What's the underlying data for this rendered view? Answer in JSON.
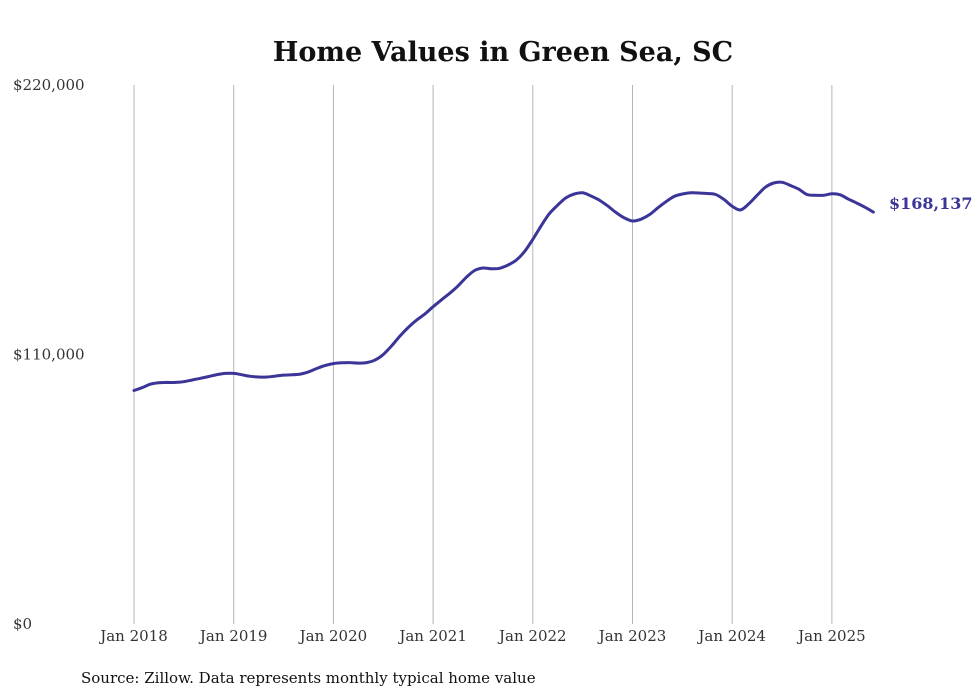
{
  "chart_data": {
    "type": "line",
    "title": "Home Values in Green Sea, SC",
    "xlabel": "",
    "ylabel": "",
    "ylim": [
      0,
      220000
    ],
    "y_ticks": [
      "$0",
      "$110,000",
      "$220,000"
    ],
    "y_tick_values": [
      0,
      110000,
      220000
    ],
    "x_ticks": [
      "Jan 2018",
      "Jan 2019",
      "Jan 2020",
      "Jan 2021",
      "Jan 2022",
      "Jan 2023",
      "Jan 2024",
      "Jan 2025"
    ],
    "x_tick_values": [
      "2018-01",
      "2019-01",
      "2020-01",
      "2021-01",
      "2022-01",
      "2023-01",
      "2024-01",
      "2025-01"
    ],
    "x_range": [
      "2018-01",
      "2025-06"
    ],
    "grid": "vertical",
    "line_color": "#3a3597",
    "end_label": "$168,137",
    "source": "Source: Zillow. Data represents monthly typical home value",
    "series": [
      {
        "x": [
          "2018-01",
          "2018-02",
          "2018-03",
          "2018-04",
          "2018-05",
          "2018-06",
          "2018-07",
          "2018-08",
          "2018-09",
          "2018-10",
          "2018-11",
          "2018-12",
          "2019-01",
          "2019-02",
          "2019-03",
          "2019-04",
          "2019-05",
          "2019-06",
          "2019-07",
          "2019-08",
          "2019-09",
          "2019-10",
          "2019-11",
          "2019-12",
          "2020-01",
          "2020-02",
          "2020-03",
          "2020-04",
          "2020-05",
          "2020-06",
          "2020-07",
          "2020-08",
          "2020-09",
          "2020-10",
          "2020-11",
          "2020-12",
          "2021-01",
          "2021-02",
          "2021-03",
          "2021-04",
          "2021-05",
          "2021-06",
          "2021-07",
          "2021-08",
          "2021-09",
          "2021-10",
          "2021-11",
          "2021-12",
          "2022-01",
          "2022-02",
          "2022-03",
          "2022-04",
          "2022-05",
          "2022-06",
          "2022-07",
          "2022-08",
          "2022-09",
          "2022-10",
          "2022-11",
          "2022-12",
          "2023-01",
          "2023-02",
          "2023-03",
          "2023-04",
          "2023-05",
          "2023-06",
          "2023-07",
          "2023-08",
          "2023-09",
          "2023-10",
          "2023-11",
          "2023-12",
          "2024-01",
          "2024-02",
          "2024-03",
          "2024-04",
          "2024-05",
          "2024-06",
          "2024-07",
          "2024-08",
          "2024-09",
          "2024-10",
          "2024-11",
          "2024-12",
          "2025-01",
          "2025-02",
          "2025-03",
          "2025-04",
          "2025-05",
          "2025-06"
        ],
        "values": [
          95300,
          96500,
          97900,
          98500,
          98600,
          98600,
          98900,
          99600,
          100300,
          101000,
          101800,
          102300,
          102300,
          101700,
          101100,
          100800,
          100800,
          101200,
          101600,
          101700,
          102000,
          102900,
          104300,
          105500,
          106300,
          106600,
          106700,
          106500,
          106700,
          107700,
          110000,
          113500,
          117500,
          121000,
          124000,
          126500,
          129500,
          132300,
          135000,
          138000,
          141500,
          144300,
          145300,
          145000,
          145200,
          146500,
          148500,
          152000,
          157000,
          162500,
          167500,
          171000,
          174000,
          175500,
          176000,
          174700,
          173000,
          170700,
          168000,
          165800,
          164500,
          165200,
          167000,
          169700,
          172300,
          174500,
          175500,
          176000,
          175900,
          175700,
          175300,
          173300,
          170500,
          169000,
          171500,
          175000,
          178300,
          180000,
          180300,
          179000,
          177500,
          175300,
          175000,
          175000,
          175600,
          175200,
          173400,
          171800,
          170100,
          168137
        ]
      }
    ]
  }
}
